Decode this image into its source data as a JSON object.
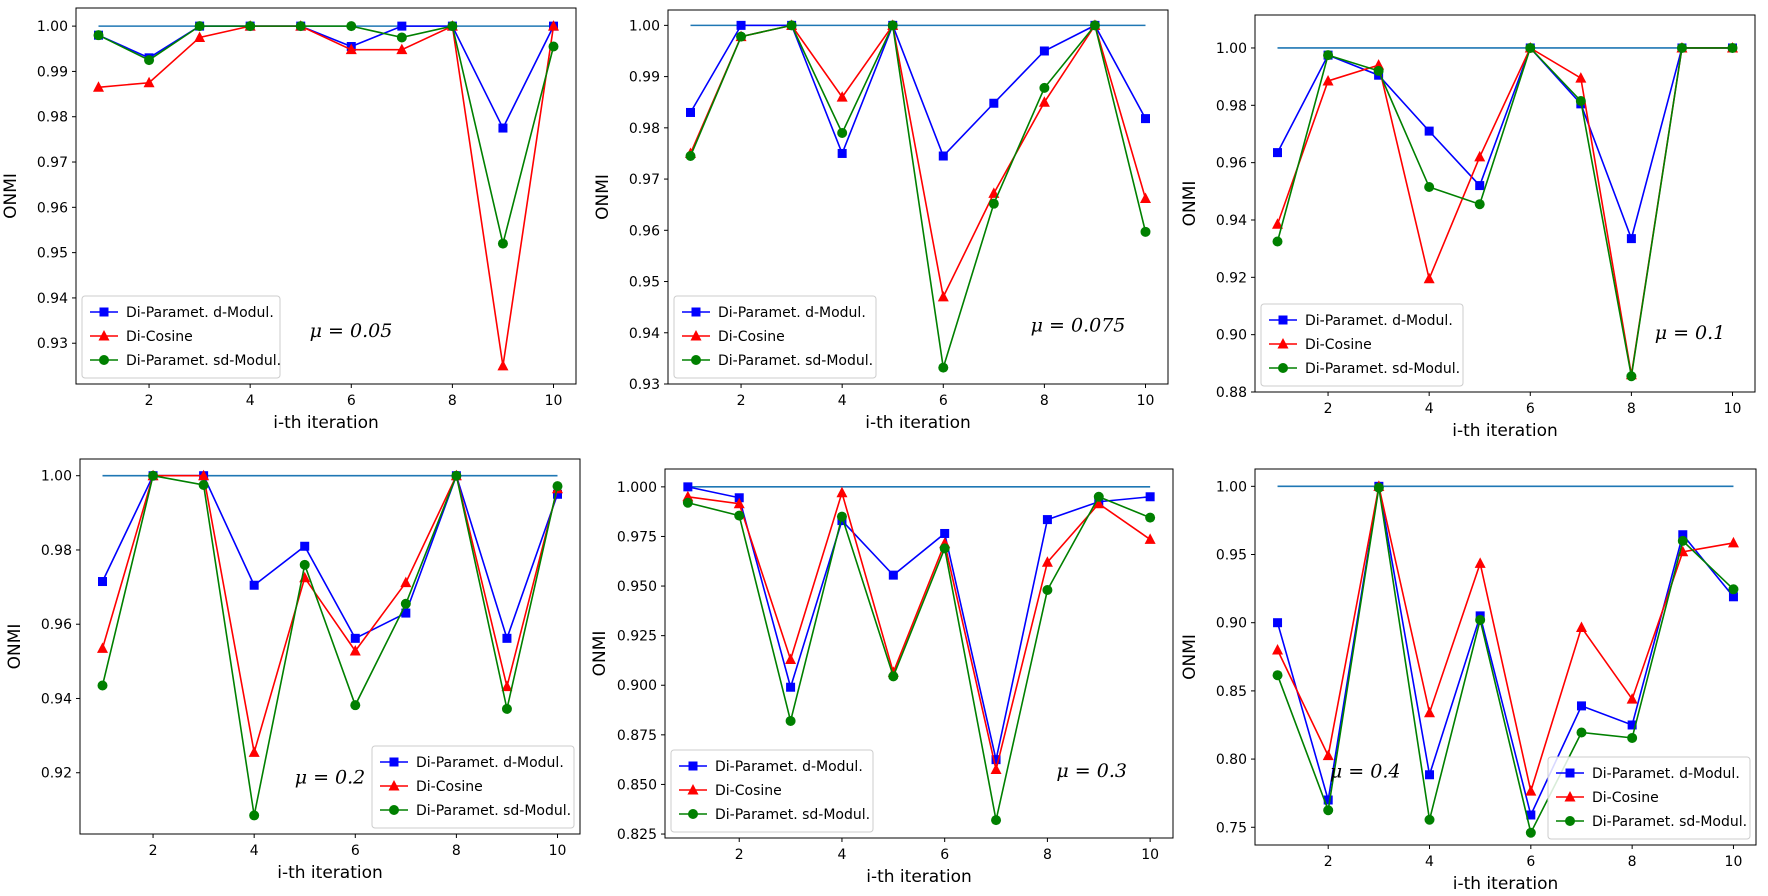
{
  "chart_data": [
    {
      "type": "line",
      "title": "",
      "annotation": "μ = 0.05",
      "legend_position": "lower-left",
      "xlabel": "i-th iteration",
      "ylabel": "ONMI",
      "x": [
        1,
        2,
        3,
        4,
        5,
        6,
        7,
        8,
        9,
        10
      ],
      "xticks": [
        2,
        4,
        6,
        8,
        10
      ],
      "ylim": [
        0.921,
        1.004
      ],
      "yticks": [
        0.93,
        0.94,
        0.95,
        0.96,
        0.97,
        0.98,
        0.99,
        1.0
      ],
      "ytick_labels": [
        "0.93",
        "0.94",
        "0.95",
        "0.96",
        "0.97",
        "0.98",
        "0.99",
        "1.00"
      ],
      "reference_line": 1.0,
      "series": [
        {
          "name": "Di-Paramet. d-Modul.",
          "color": "#0000ff",
          "marker": "square",
          "values": [
            0.998,
            0.993,
            1.0,
            1.0,
            1.0,
            0.9955,
            1.0,
            1.0,
            0.9775,
            1.0
          ]
        },
        {
          "name": "Di-Cosine",
          "color": "#ff0000",
          "marker": "triangle",
          "values": [
            0.9865,
            0.9875,
            0.9975,
            1.0,
            1.0,
            0.9948,
            0.9948,
            1.0,
            0.925,
            1.0
          ]
        },
        {
          "name": "Di-Paramet. sd-Modul.",
          "color": "#008000",
          "marker": "circle",
          "values": [
            0.998,
            0.9925,
            1.0,
            1.0,
            1.0,
            1.0,
            0.9975,
            1.0,
            0.952,
            0.9955
          ]
        }
      ]
    },
    {
      "type": "line",
      "title": "",
      "annotation": "μ = 0.075",
      "legend_position": "lower-left",
      "xlabel": "i-th iteration",
      "ylabel": "ONMI",
      "x": [
        1,
        2,
        3,
        4,
        5,
        6,
        7,
        8,
        9,
        10
      ],
      "xticks": [
        2,
        4,
        6,
        8,
        10
      ],
      "ylim": [
        0.93,
        1.003
      ],
      "yticks": [
        0.93,
        0.94,
        0.95,
        0.96,
        0.97,
        0.98,
        0.99,
        1.0
      ],
      "ytick_labels": [
        "0.93",
        "0.94",
        "0.95",
        "0.96",
        "0.97",
        "0.98",
        "0.99",
        "1.00"
      ],
      "reference_line": 1.0,
      "series": [
        {
          "name": "Di-Paramet. d-Modul.",
          "color": "#0000ff",
          "marker": "square",
          "values": [
            0.983,
            1.0,
            1.0,
            0.975,
            1.0,
            0.9745,
            0.9848,
            0.995,
            1.0,
            0.9818
          ]
        },
        {
          "name": "Di-Cosine",
          "color": "#ff0000",
          "marker": "triangle",
          "values": [
            0.975,
            0.9978,
            1.0,
            0.986,
            1.0,
            0.947,
            0.9672,
            0.985,
            1.0,
            0.9662
          ]
        },
        {
          "name": "Di-Paramet. sd-Modul.",
          "color": "#008000",
          "marker": "circle",
          "values": [
            0.9745,
            0.9978,
            1.0,
            0.979,
            1.0,
            0.9332,
            0.9652,
            0.9878,
            1.0,
            0.9597
          ]
        }
      ]
    },
    {
      "type": "line",
      "title": "",
      "annotation": "μ = 0.1",
      "legend_position": "lower-left",
      "xlabel": "i-th iteration",
      "ylabel": "ONMI",
      "x": [
        1,
        2,
        3,
        4,
        5,
        6,
        7,
        8,
        9,
        10
      ],
      "xticks": [
        2,
        4,
        6,
        8,
        10
      ],
      "ylim": [
        0.88,
        1.0115
      ],
      "yticks": [
        0.88,
        0.9,
        0.92,
        0.94,
        0.96,
        0.98,
        1.0
      ],
      "ytick_labels": [
        "0.88",
        "0.90",
        "0.92",
        "0.94",
        "0.96",
        "0.98",
        "1.00"
      ],
      "reference_line": 1.0,
      "series": [
        {
          "name": "Di-Paramet. d-Modul.",
          "color": "#0000ff",
          "marker": "square",
          "values": [
            0.9635,
            0.9975,
            0.9905,
            0.971,
            0.952,
            1.0,
            0.9805,
            0.9335,
            1.0,
            1.0
          ]
        },
        {
          "name": "Di-Cosine",
          "color": "#ff0000",
          "marker": "triangle",
          "values": [
            0.9385,
            0.9885,
            0.994,
            0.9195,
            0.962,
            1.0,
            0.9895,
            0.886,
            1.0,
            1.0
          ]
        },
        {
          "name": "Di-Paramet. sd-Modul.",
          "color": "#008000",
          "marker": "circle",
          "values": [
            0.9325,
            0.9975,
            0.992,
            0.9515,
            0.9455,
            1.0,
            0.9815,
            0.8855,
            1.0,
            1.0
          ]
        }
      ]
    },
    {
      "type": "line",
      "title": "",
      "annotation": "μ = 0.2",
      "legend_position": "lower-right",
      "xlabel": "i-th iteration",
      "ylabel": "ONMI",
      "x": [
        1,
        2,
        3,
        4,
        5,
        6,
        7,
        8,
        9,
        10
      ],
      "xticks": [
        2,
        4,
        6,
        8,
        10
      ],
      "ylim": [
        0.9035,
        1.0045
      ],
      "yticks": [
        0.92,
        0.94,
        0.96,
        0.98,
        1.0
      ],
      "ytick_labels": [
        "0.92",
        "0.94",
        "0.96",
        "0.98",
        "1.00"
      ],
      "reference_line": 1.0,
      "series": [
        {
          "name": "Di-Paramet. d-Modul.",
          "color": "#0000ff",
          "marker": "square",
          "values": [
            0.9715,
            1.0,
            1.0,
            0.9705,
            0.981,
            0.9562,
            0.963,
            1.0,
            0.9562,
            0.995
          ]
        },
        {
          "name": "Di-Cosine",
          "color": "#ff0000",
          "marker": "triangle",
          "values": [
            0.9535,
            1.0,
            1.0,
            0.9255,
            0.9725,
            0.9528,
            0.9712,
            1.0,
            0.9432,
            0.9965
          ]
        },
        {
          "name": "Di-Paramet. sd-Modul.",
          "color": "#008000",
          "marker": "circle",
          "values": [
            0.9435,
            1.0,
            0.9975,
            0.9085,
            0.976,
            0.9382,
            0.9655,
            1.0,
            0.9372,
            0.9972
          ]
        }
      ]
    },
    {
      "type": "line",
      "title": "",
      "annotation": "μ = 0.3",
      "legend_position": "lower-left",
      "xlabel": "i-th iteration",
      "ylabel": "ONMI",
      "x": [
        1,
        2,
        3,
        4,
        5,
        6,
        7,
        8,
        9,
        10
      ],
      "xticks": [
        2,
        4,
        6,
        8,
        10
      ],
      "ylim": [
        0.823,
        1.009
      ],
      "yticks": [
        0.825,
        0.85,
        0.875,
        0.9,
        0.925,
        0.95,
        0.975,
        1.0
      ],
      "ytick_labels": [
        "0.825",
        "0.850",
        "0.875",
        "0.900",
        "0.925",
        "0.950",
        "0.975",
        "1.000"
      ],
      "reference_line": 1.0,
      "series": [
        {
          "name": "Di-Paramet. d-Modul.",
          "color": "#0000ff",
          "marker": "square",
          "values": [
            1.0,
            0.9945,
            0.899,
            0.983,
            0.9555,
            0.9765,
            0.8625,
            0.9835,
            0.9925,
            0.995
          ]
        },
        {
          "name": "Di-Cosine",
          "color": "#ff0000",
          "marker": "triangle",
          "values": [
            0.995,
            0.9915,
            0.913,
            0.997,
            0.9065,
            0.9715,
            0.8575,
            0.962,
            0.9915,
            0.9735
          ]
        },
        {
          "name": "Di-Paramet. sd-Modul.",
          "color": "#008000",
          "marker": "circle",
          "values": [
            0.992,
            0.9855,
            0.882,
            0.985,
            0.9045,
            0.969,
            0.832,
            0.948,
            0.995,
            0.9845
          ]
        }
      ]
    },
    {
      "type": "line",
      "title": "",
      "annotation": "μ = 0.4",
      "legend_position": "lower-right",
      "xlabel": "i-th iteration",
      "ylabel": "ONMI",
      "x": [
        1,
        2,
        3,
        4,
        5,
        6,
        7,
        8,
        9,
        10
      ],
      "xticks": [
        2,
        4,
        6,
        8,
        10
      ],
      "ylim": [
        0.737,
        1.0127
      ],
      "yticks": [
        0.75,
        0.8,
        0.85,
        0.9,
        0.95,
        1.0
      ],
      "ytick_labels": [
        "0.75",
        "0.80",
        "0.85",
        "0.90",
        "0.95",
        "1.00"
      ],
      "reference_line": 1.0,
      "series": [
        {
          "name": "Di-Paramet. d-Modul.",
          "color": "#0000ff",
          "marker": "square",
          "values": [
            0.9,
            0.77,
            1.0,
            0.7885,
            0.905,
            0.759,
            0.839,
            0.825,
            0.9645,
            0.919
          ]
        },
        {
          "name": "Di-Cosine",
          "color": "#ff0000",
          "marker": "triangle",
          "values": [
            0.88,
            0.8025,
            1.0,
            0.834,
            0.9435,
            0.7765,
            0.8965,
            0.844,
            0.952,
            0.9585
          ]
        },
        {
          "name": "Di-Paramet. sd-Modul.",
          "color": "#008000",
          "marker": "circle",
          "values": [
            0.8615,
            0.7625,
            0.999,
            0.7555,
            0.902,
            0.746,
            0.8195,
            0.8155,
            0.96,
            0.9245
          ]
        }
      ]
    }
  ]
}
